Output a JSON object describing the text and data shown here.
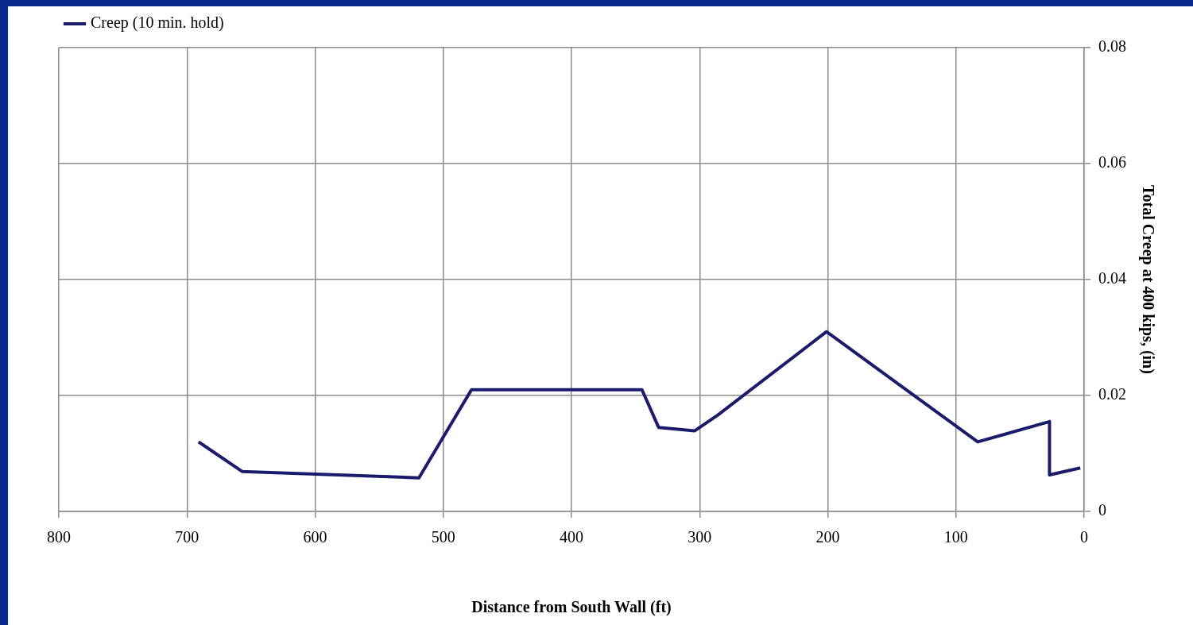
{
  "chart_data": {
    "type": "line",
    "xlabel": "Distance from South Wall (ft)",
    "ylabel": "Total Creep at 400 kips, (in)",
    "xlim": [
      800,
      0
    ],
    "xticks": [
      800,
      700,
      600,
      500,
      400,
      300,
      200,
      100,
      0
    ],
    "ylim": [
      0,
      0.08
    ],
    "yticks": [
      0,
      0.02,
      0.04,
      0.06,
      0.08
    ],
    "grid": true,
    "legend": "top left",
    "marker": "none",
    "line_style": "solid",
    "series": [
      {
        "name": "Creep (10 min. hold)",
        "color": "#1b1b6b",
        "x": [
          691,
          657,
          519,
          478,
          345,
          332,
          304,
          286,
          201,
          83,
          27,
          27,
          3
        ],
        "values": [
          0.012,
          0.0069,
          0.0058,
          0.021,
          0.021,
          0.0145,
          0.0139,
          0.0166,
          0.031,
          0.012,
          0.0155,
          0.0063,
          0.0075
        ]
      }
    ]
  }
}
